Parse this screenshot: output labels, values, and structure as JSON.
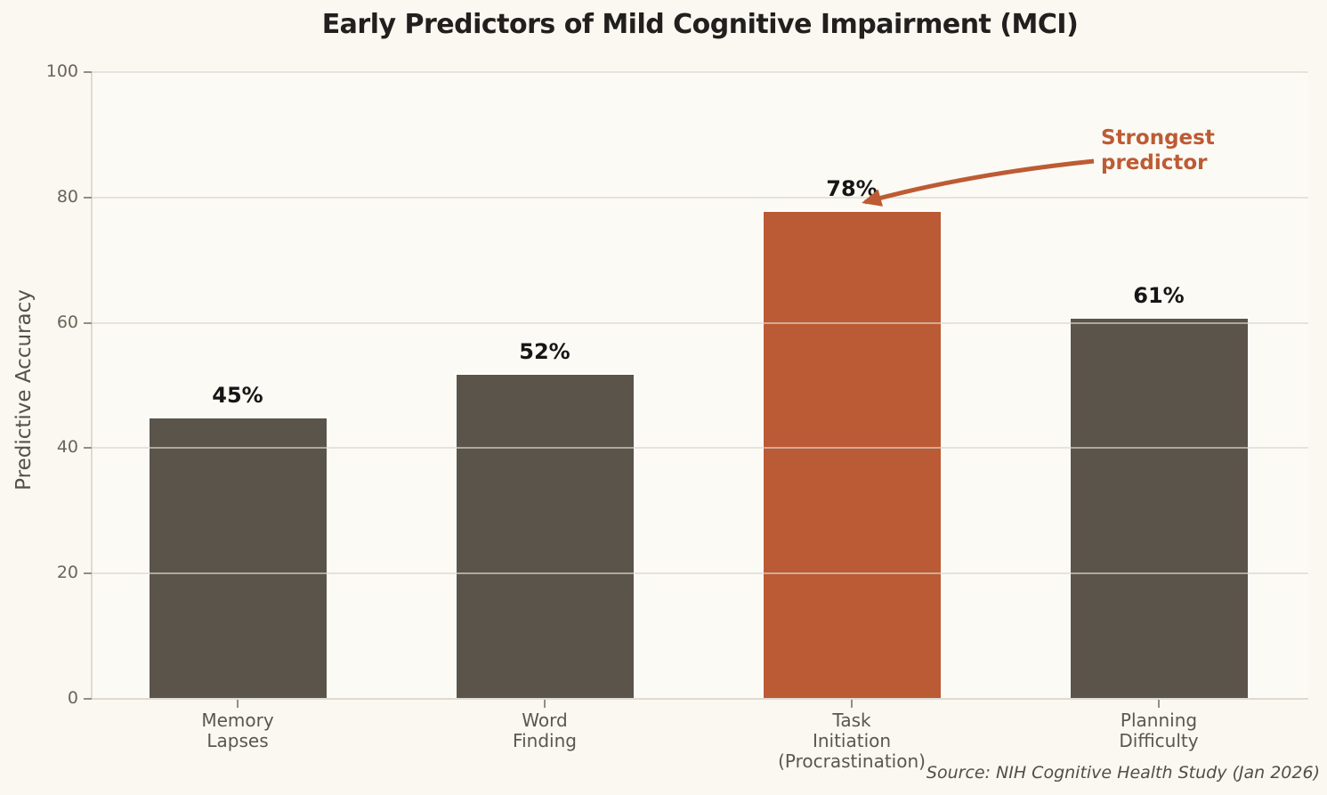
{
  "chart_data": {
    "type": "bar",
    "title": "Early Predictors of Mild Cognitive Impairment (MCI)",
    "ylabel": "Predictive Accuracy",
    "xlabel": "",
    "ylim": [
      0,
      100
    ],
    "yticks": [
      0,
      20,
      40,
      60,
      80,
      100
    ],
    "grid": true,
    "legend": "none",
    "categories": [
      "Memory\nLapses",
      "Word\nFinding",
      "Task\nInitiation\n(Procrastination)",
      "Planning\nDifficulty"
    ],
    "values": [
      45,
      52,
      78,
      61
    ],
    "value_labels": [
      "45%",
      "52%",
      "78%",
      "61%"
    ],
    "bar_colors": [
      "#5B544B",
      "#5B544B",
      "#BB5B35",
      "#5B544B"
    ],
    "highlight_index": 2,
    "annotation": {
      "lines": [
        "Strongest",
        "predictor"
      ],
      "color": "#BC5B34",
      "points_to_value": 78
    },
    "source": "Source: NIH Cognitive Health Study (Jan 2026)"
  },
  "colors": {
    "background": "#FAF8F1",
    "plot_background": "#FCFAF5",
    "bar_default": "#5B544B",
    "bar_highlight": "#BB5B35",
    "accent": "#BC5B34",
    "bar_edge": "#FFFFFF"
  }
}
